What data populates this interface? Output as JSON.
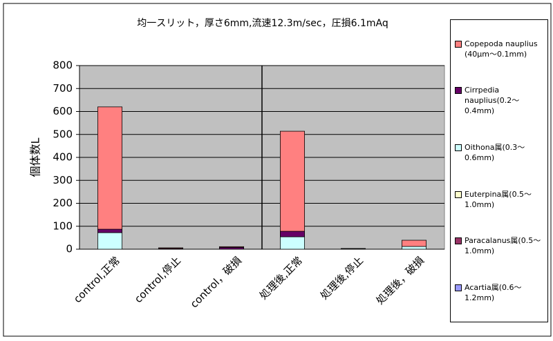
{
  "chart_data": {
    "type": "bar",
    "stacked": true,
    "title": "均一スリット，厚さ6mm,流速12.3m/sec，圧損6.1mAq",
    "y_label": "個体数L",
    "categories": [
      "control,正常",
      "control,停止",
      "control，破損",
      "処理後,正常",
      "処理後,停止",
      "処理後，破損"
    ],
    "series": [
      {
        "name": "Copepoda nauplius (40μm～0.1mm)",
        "color": "#ff8080",
        "values": [
          533,
          3,
          3,
          436,
          1,
          27
        ]
      },
      {
        "name": "Cirrpedia nauplius(0.2～0.4mm)",
        "color": "#660066",
        "values": [
          15,
          3,
          8,
          24,
          2,
          0
        ]
      },
      {
        "name": "Oithona属(0.3～0.6mm)",
        "color": "#ccffff",
        "values": [
          72,
          0,
          0,
          54,
          0,
          12
        ]
      },
      {
        "name": "Euterpina属(0.5～1.0mm)",
        "color": "#ffffcc",
        "values": [
          0,
          0,
          0,
          0,
          0,
          0
        ]
      },
      {
        "name": "Paracalanus属(0.5～1.0mm)",
        "color": "#993366",
        "values": [
          0,
          0,
          0,
          0,
          0,
          0
        ]
      },
      {
        "name": "Acartia属(0.6～1.2mm)",
        "color": "#9999ff",
        "values": [
          0,
          0,
          0,
          0,
          0,
          0
        ]
      }
    ],
    "ylim": [
      0,
      800
    ],
    "yticks": [
      0,
      100,
      200,
      300,
      400,
      500,
      600,
      700,
      800
    ],
    "grid": true
  }
}
